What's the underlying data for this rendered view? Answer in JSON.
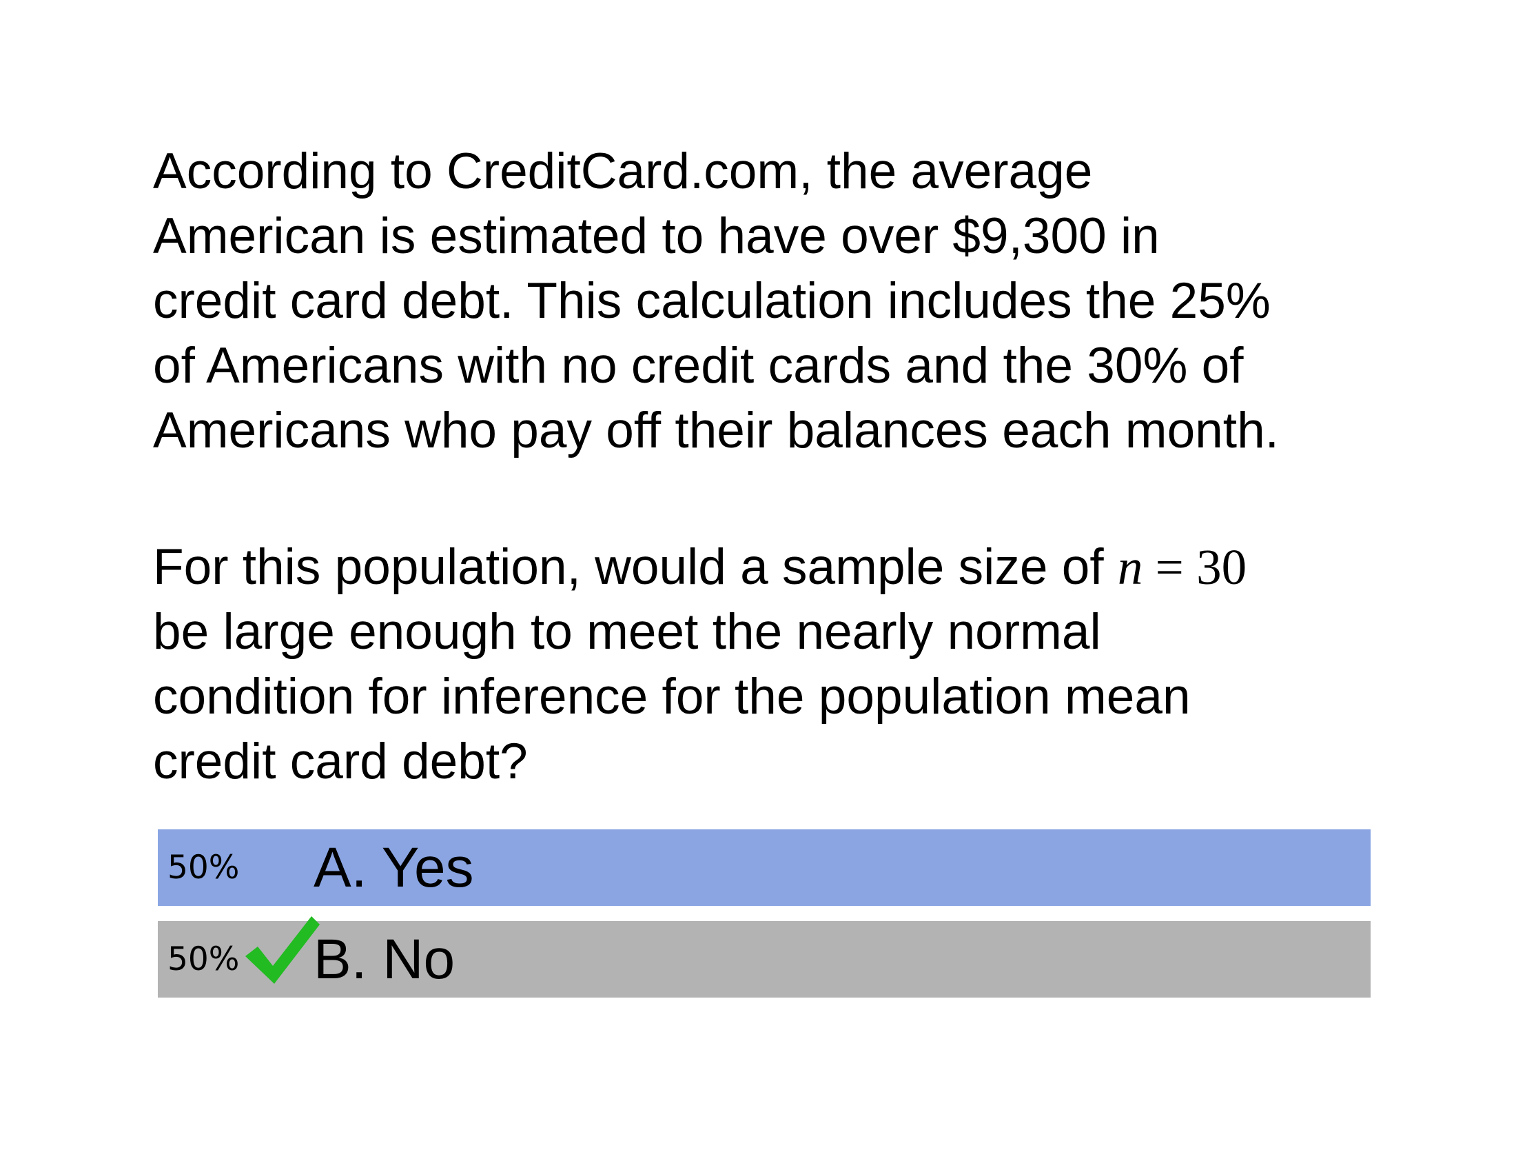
{
  "question": {
    "paragraph1_lines": [
      "According to CreditCard.com, the average",
      "American is estimated to have over $9,300 in",
      "credit card debt. This calculation includes the 25%",
      "of Americans with no credit cards and the 30% of",
      "Americans who pay off their balances each month."
    ],
    "paragraph2": {
      "line1_text": "For this population, would a sample size of ",
      "math_var": "n",
      "math_rest": " = 30",
      "lines": [
        "be large enough to meet the nearly normal",
        "condition for inference for the population mean",
        "credit card debt?"
      ]
    }
  },
  "options": [
    {
      "percent": "50%",
      "label": "A. Yes",
      "bar_color": "#8aa5e2",
      "share": 0.5,
      "correct": false
    },
    {
      "percent": "50%",
      "label": "B. No",
      "bar_color": "#b3b3b3",
      "share": 0.5,
      "correct": true
    }
  ],
  "icons": {
    "correct_mark": "checkmark-icon",
    "correct_color": "#22bb22"
  }
}
